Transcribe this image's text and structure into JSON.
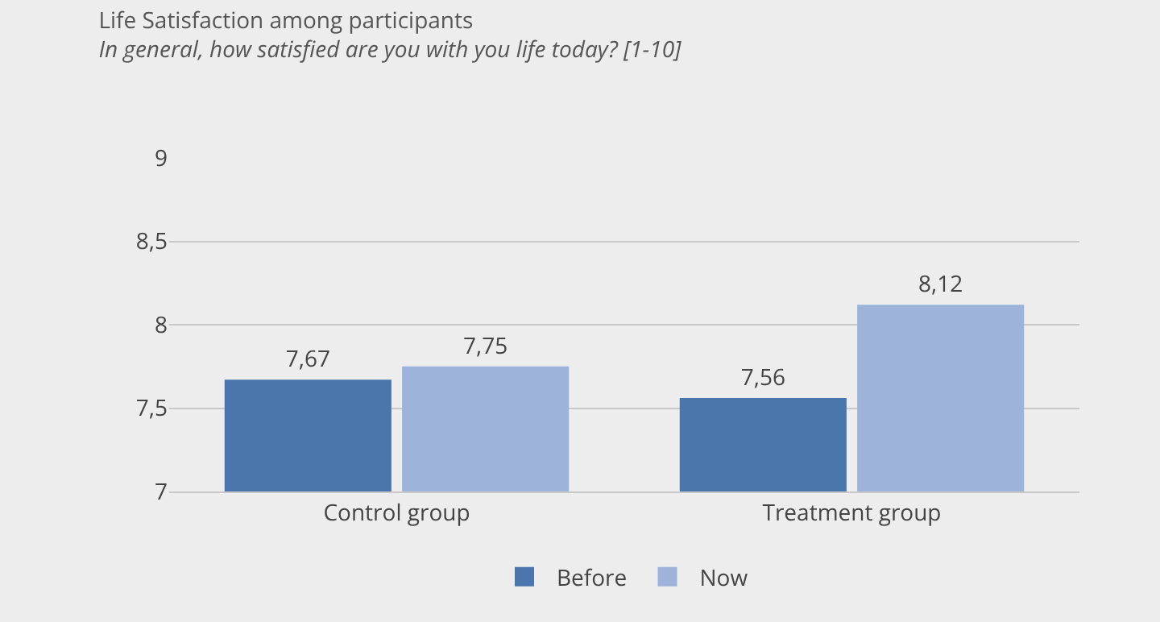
{
  "chart_data": {
    "type": "bar",
    "title": "Life Satisfaction among participants",
    "subtitle": "In general, how satisfied are you with you life today? [1-10]",
    "categories": [
      "Control group",
      "Treatment group"
    ],
    "series": [
      {
        "name": "Before",
        "color": "#4a76ad",
        "values": [
          7.67,
          7.56
        ],
        "value_labels": [
          "7,67",
          "7,56"
        ]
      },
      {
        "name": "Now",
        "color": "#9db3d9",
        "values": [
          7.75,
          8.12
        ],
        "value_labels": [
          "7,75",
          "8,12"
        ]
      }
    ],
    "ylim": [
      7,
      9
    ],
    "yticks": [
      7,
      {
        "value": 7.5,
        "label": "7,5"
      },
      8,
      {
        "value": 8.5,
        "label": "8,5"
      },
      9
    ],
    "grid": "y",
    "legend": "bottom"
  }
}
